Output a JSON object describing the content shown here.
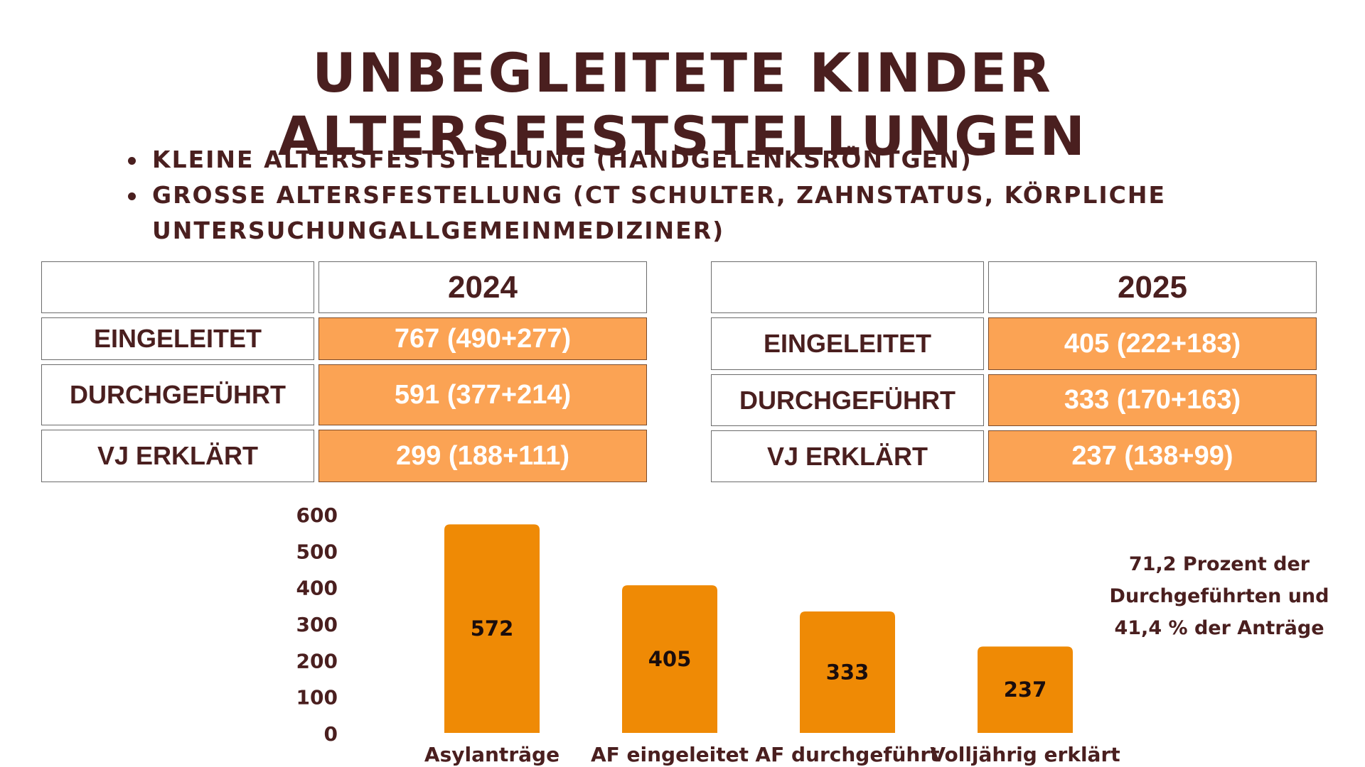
{
  "title": "UNBEGLEITETE KINDER ALTERSFESTSTELLUNGEN",
  "bullets": [
    "KLEINE ALTERSFESTSTELLUNG (HANDGELENKSRÖNTGEN)",
    "GROSSE ALTERSFESTELLUNG (CT SCHULTER, ZAHNSTATUS, KÖRPLICHE UNTERSUCHUNGALLGEMEINMEDIZINER)"
  ],
  "tables": [
    {
      "year": "2024",
      "rows": [
        {
          "label": "EINGELEITET",
          "value": "767 (490+277)"
        },
        {
          "label": "DURCHGEFÜHRT",
          "value": "591 (377+214)"
        },
        {
          "label": "VJ ERKLÄRT",
          "value": "299 (188+111)"
        }
      ]
    },
    {
      "year": "2025",
      "rows": [
        {
          "label": "EINGELEITET",
          "value": "405 (222+183)"
        },
        {
          "label": "DURCHGEFÜHRT",
          "value": "333 (170+163)"
        },
        {
          "label": "VJ ERKLÄRT",
          "value": "237 (138+99)"
        }
      ]
    }
  ],
  "chart_data": {
    "type": "bar",
    "categories": [
      "Asylanträge",
      "AF eingeleitet",
      "AF durchgeführt",
      "Volljährig erklärt"
    ],
    "values": [
      572,
      405,
      333,
      237
    ],
    "data_labels": [
      "572",
      "405",
      "333",
      "237"
    ],
    "ylim": [
      0,
      600
    ],
    "yticks": [
      0,
      100,
      200,
      300,
      400,
      500,
      600
    ],
    "grid": false,
    "bar_color": "#ef8a05"
  },
  "note": {
    "lines": [
      "71,2 Prozent der",
      "Durchgeführten und",
      "41,4 % der Anträge"
    ]
  }
}
